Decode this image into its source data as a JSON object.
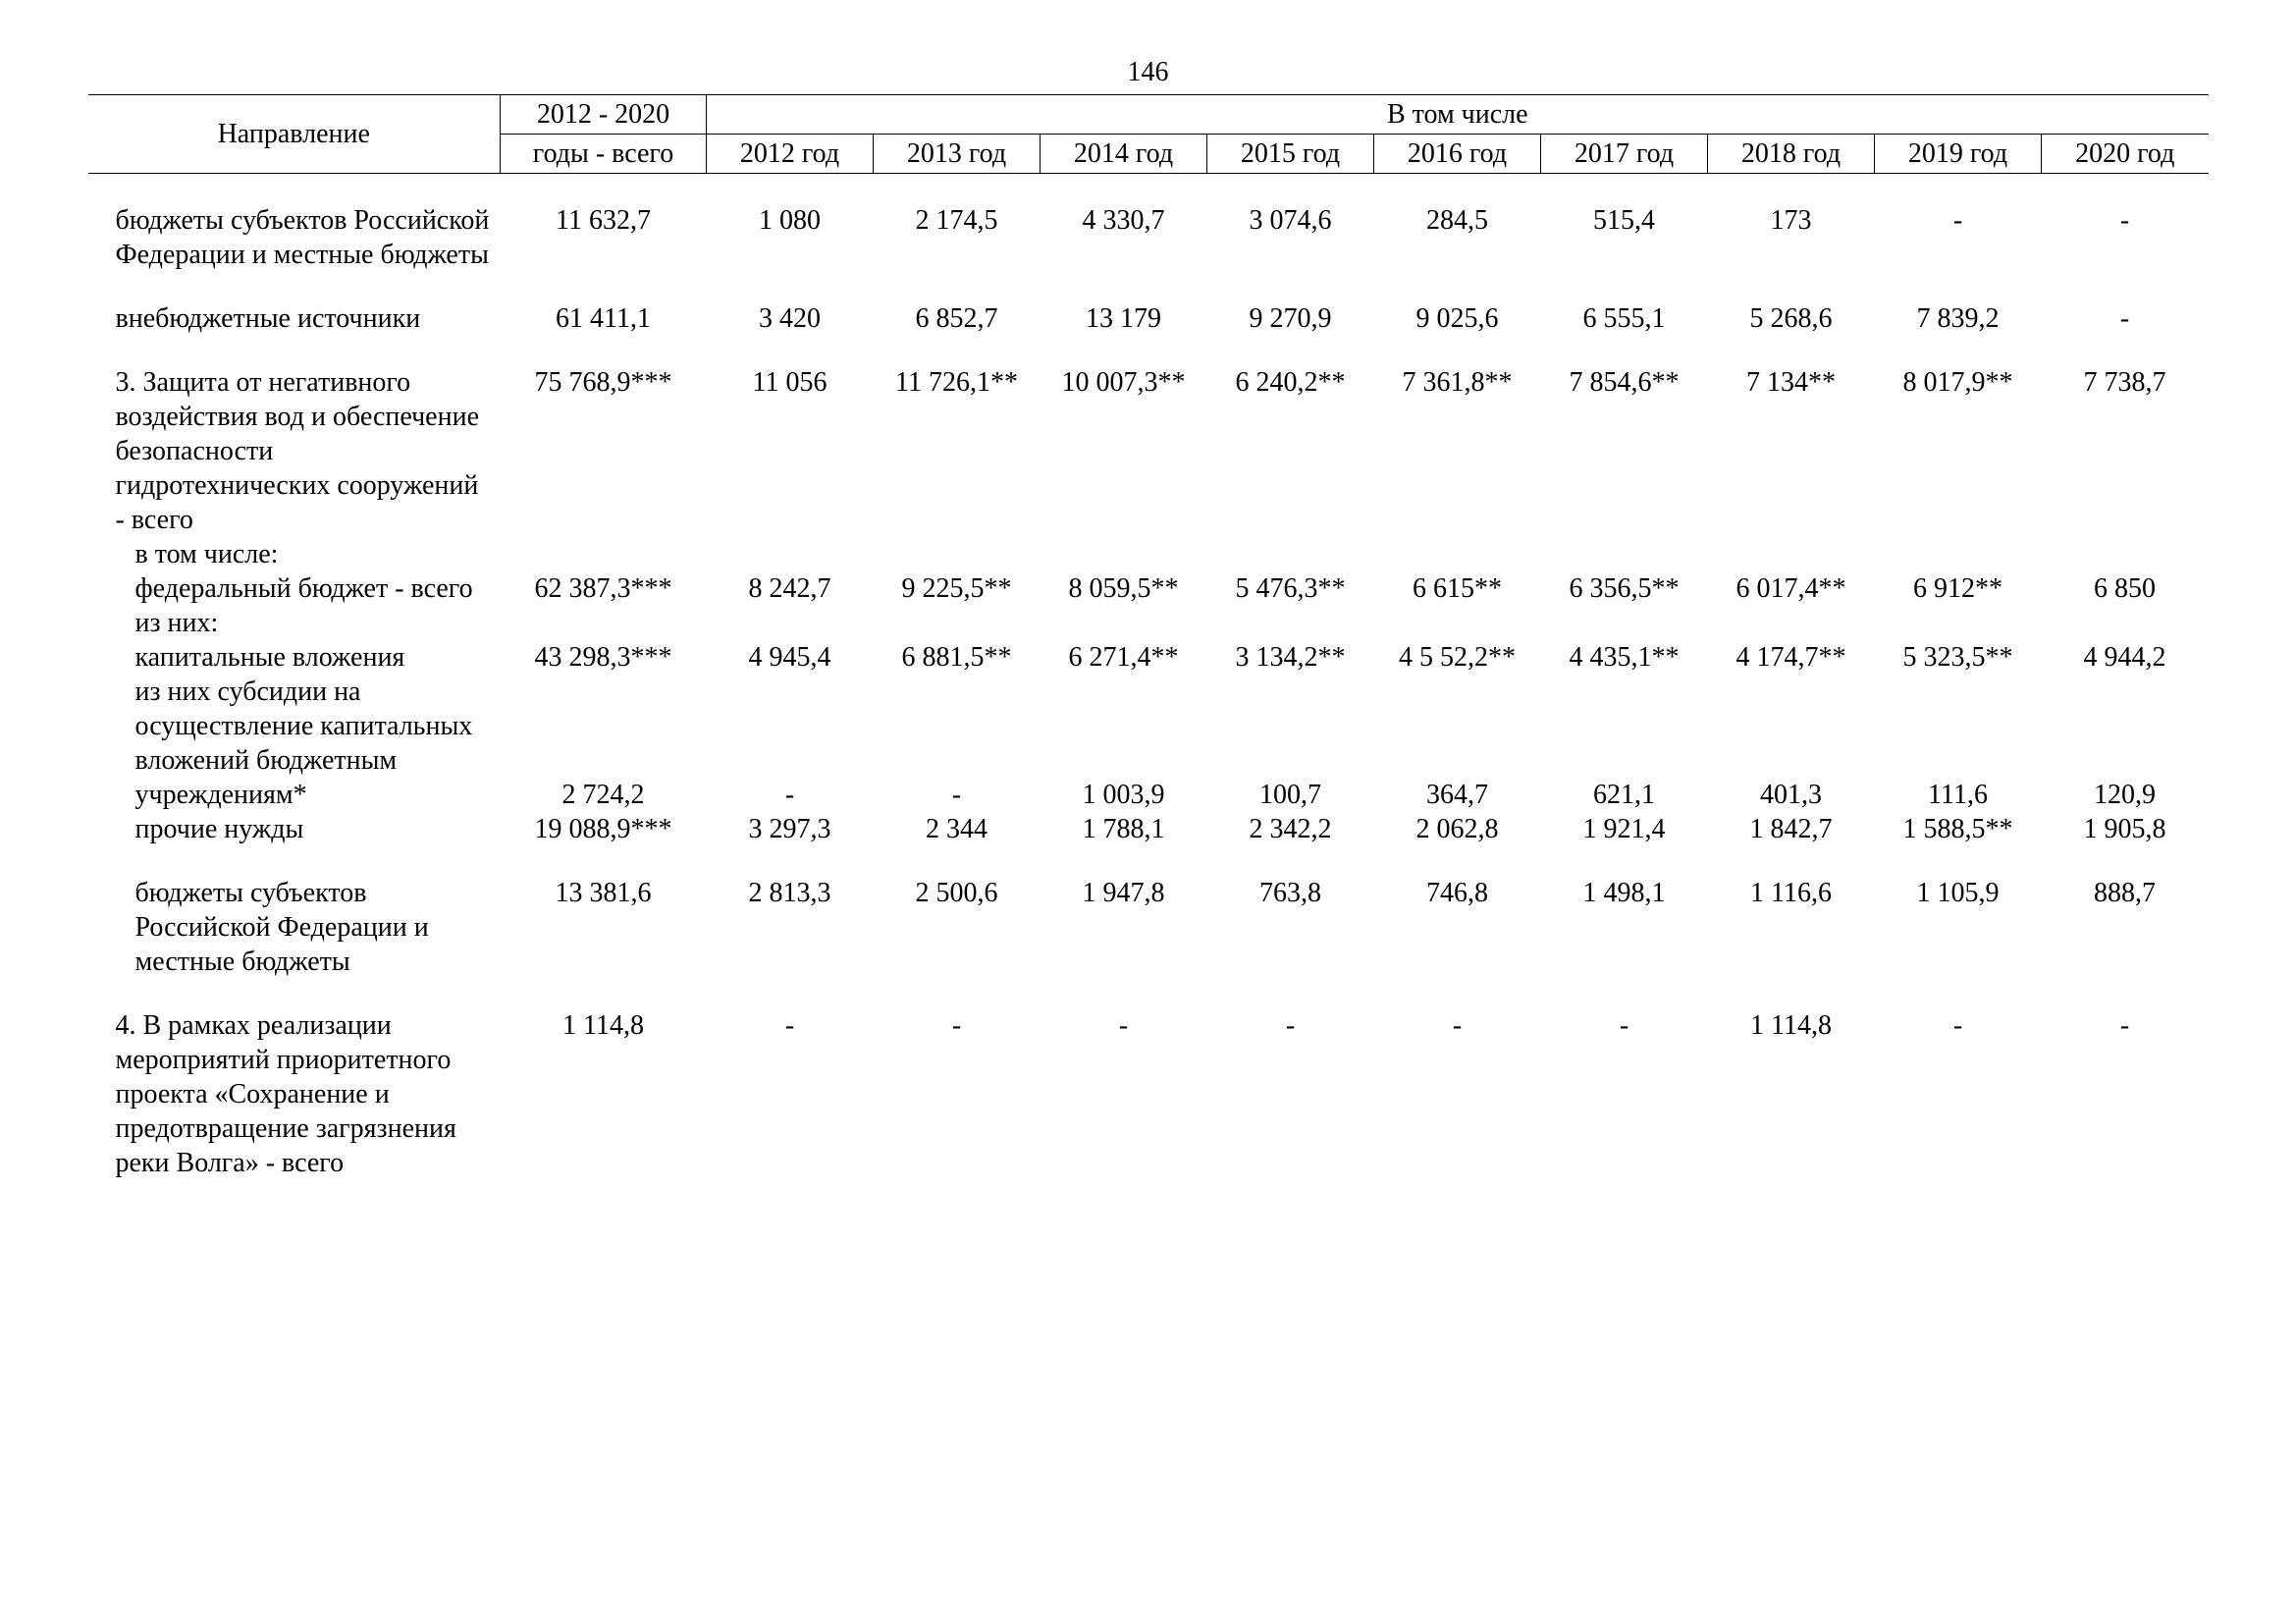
{
  "page_number": "146",
  "header": {
    "direction": "Направление",
    "total_years": "2012 - 2020 годы - всего",
    "including": "В том числе",
    "years": [
      "2012 год",
      "2013 год",
      "2014 год",
      "2015 год",
      "2016 год",
      "2017 год",
      "2018 год",
      "2019 год",
      "2020 год"
    ]
  },
  "rows": [
    {
      "label": "бюджеты субъектов Российской Федерации и местные бюджеты",
      "indent": 0,
      "vals": [
        "11 632,7",
        "1 080",
        "2 174,5",
        "4 330,7",
        "3 074,6",
        "284,5",
        "515,4",
        "173",
        "-",
        "-"
      ]
    },
    {
      "label": "внебюджетные источники",
      "indent": 0,
      "vals": [
        "61 411,1",
        "3 420",
        "6 852,7",
        "13 179",
        "9 270,9",
        "9 025,6",
        "6 555,1",
        "5 268,6",
        "7 839,2",
        "-"
      ]
    },
    {
      "label": "3. Защита от негативного воздействия вод и обеспечение безопасности гидротехнических сооружений - всего",
      "indent": 0,
      "vals": [
        "75 768,9***",
        "11 056",
        "11 726,1**",
        "10 007,3**",
        "6 240,2**",
        "7 361,8**",
        "7 854,6**",
        "7 134**",
        "8 017,9**",
        "7 738,7"
      ]
    },
    {
      "label": "в том числе:",
      "indent": 1,
      "vals": []
    },
    {
      "label": "федеральный бюджет - всего",
      "indent": 1,
      "vals": [
        "62 387,3***",
        "8 242,7",
        "9 225,5**",
        "8 059,5**",
        "5 476,3**",
        "6 615**",
        "6 356,5**",
        "6 017,4**",
        "6 912**",
        "6 850"
      ]
    },
    {
      "label": "из них:",
      "indent": 1,
      "vals": []
    },
    {
      "label": "капитальные вложения",
      "indent": 1,
      "vals": [
        "43 298,3***",
        "4 945,4",
        "6 881,5**",
        "6 271,4**",
        "3 134,2**",
        "4 5  52,2**",
        "4 435,1**",
        "4 174,7**",
        "5 323,5**",
        "4 944,2"
      ]
    },
    {
      "label": "из них субсидии на осуществление капитальных вложений бюджетным",
      "indent": 1,
      "vals": []
    },
    {
      "label": "учреждениям*",
      "indent": 1,
      "vals": [
        "2 724,2",
        "-",
        "-",
        "1 003,9",
        "100,7",
        "364,7",
        "621,1",
        "401,3",
        "111,6",
        "120,9"
      ]
    },
    {
      "label": "прочие нужды",
      "indent": 1,
      "vals": [
        "19 088,9***",
        "3 297,3",
        "2 344",
        "1 788,1",
        "2 342,2",
        "2 062,8",
        "1 921,4",
        "1 842,7",
        "1 588,5**",
        "1 905,8"
      ]
    },
    {
      "label": "бюджеты субъектов Российской Федерации и местные бюджеты",
      "indent": 1,
      "vals": [
        "13 381,6",
        "2 813,3",
        "2 500,6",
        "1 947,8",
        "763,8",
        "746,8",
        "1 498,1",
        "1 116,6",
        "1 105,9",
        "888,7"
      ]
    },
    {
      "label": "4. В рамках реализации мероприятий приоритетного проекта «Сохранение и предотвращение загрязнения реки Волга» - всего",
      "indent": 0,
      "vals": [
        "1 114,8",
        "-",
        "-",
        "-",
        "-",
        "-",
        "-",
        "1 114,8",
        "-",
        "-"
      ]
    }
  ],
  "col_widths": {
    "direction": 420,
    "total": 210,
    "year": 170
  },
  "colors": {
    "text": "#000000",
    "background": "#ffffff",
    "border": "#000000"
  },
  "font_family": "Times New Roman",
  "font_size_pt": 14
}
